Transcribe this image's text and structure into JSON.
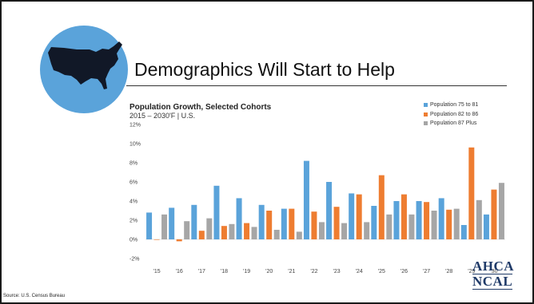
{
  "slide": {
    "title": "Demographics Will Start to Help",
    "source": "Source: U.S. Census Bureau",
    "map_icon": "usa-map-icon",
    "logo": {
      "top": "AHCA",
      "bottom": "NCAL",
      "color": "#1f3a68"
    }
  },
  "chart_data": {
    "type": "bar",
    "title": "Population Growth, Selected Cohorts",
    "subtitle": "2015 – 2030'F | U.S.",
    "categories": [
      "'15",
      "'16",
      "'17",
      "'18",
      "'19",
      "'20",
      "'21",
      "'22",
      "'23",
      "'24",
      "'25",
      "'26",
      "'27",
      "'28",
      "'29",
      "'30"
    ],
    "series": [
      {
        "name": "Population 75 to 81",
        "color": "#5aa3da",
        "values": [
          2.8,
          3.3,
          3.6,
          5.6,
          4.3,
          3.6,
          3.2,
          8.2,
          6.0,
          4.8,
          3.5,
          4.0,
          4.0,
          4.3,
          1.5,
          2.6
        ]
      },
      {
        "name": "Population 82 to 86",
        "color": "#ee7d31",
        "values": [
          0.0,
          -0.2,
          0.9,
          1.4,
          1.7,
          3.0,
          3.2,
          2.9,
          3.4,
          4.7,
          6.7,
          4.7,
          3.9,
          3.1,
          9.6,
          5.2
        ]
      },
      {
        "name": "Population 87 Plus",
        "color": "#a6a6a6",
        "values": [
          2.6,
          1.9,
          2.2,
          1.6,
          1.3,
          1.0,
          0.8,
          1.8,
          1.7,
          1.8,
          2.6,
          2.6,
          3.0,
          3.2,
          4.1,
          5.9
        ]
      }
    ],
    "y_ticks": [
      "-2%",
      "0%",
      "2%",
      "4%",
      "6%",
      "8%",
      "10%",
      "12%"
    ],
    "ylim": [
      -2,
      12
    ],
    "grid": true,
    "legend_position": "top-right"
  }
}
